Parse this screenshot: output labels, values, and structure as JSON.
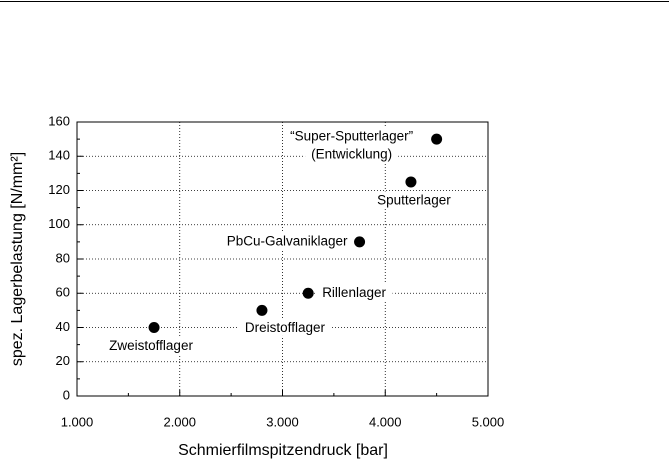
{
  "chart_data": {
    "type": "scatter",
    "x_label": "Schmierfilmspitzendruck [bar]",
    "y_label": "spez. Lagerbelastung [N/mm²]",
    "series": [
      {
        "color": "#000000",
        "x": [
          1750,
          2800,
          3250,
          3750,
          4250,
          4500
        ],
        "values": [
          40,
          50,
          60,
          90,
          125,
          150
        ],
        "labels": [
          [
            "Zweistofflager"
          ],
          [
            "Dreistofflager"
          ],
          [
            "Rillenlager"
          ],
          [
            "PbCu-Galvaniklager"
          ],
          [
            "Sputterlager"
          ],
          [
            "“Super-Sputterlager”",
            "(Entwicklung)"
          ]
        ]
      }
    ],
    "xlim": [
      1000,
      5000
    ],
    "xticks": [
      {
        "value": 1000,
        "label": "1.000"
      },
      {
        "value": 2000,
        "label": "2.000"
      },
      {
        "value": 3000,
        "label": "3.000"
      },
      {
        "value": 4000,
        "label": "4.000"
      },
      {
        "value": 5000,
        "label": "5.000"
      }
    ],
    "ylim": [
      0,
      160
    ],
    "yticks": [
      0,
      20,
      40,
      60,
      80,
      100,
      120,
      140,
      160
    ],
    "grid": true
  }
}
